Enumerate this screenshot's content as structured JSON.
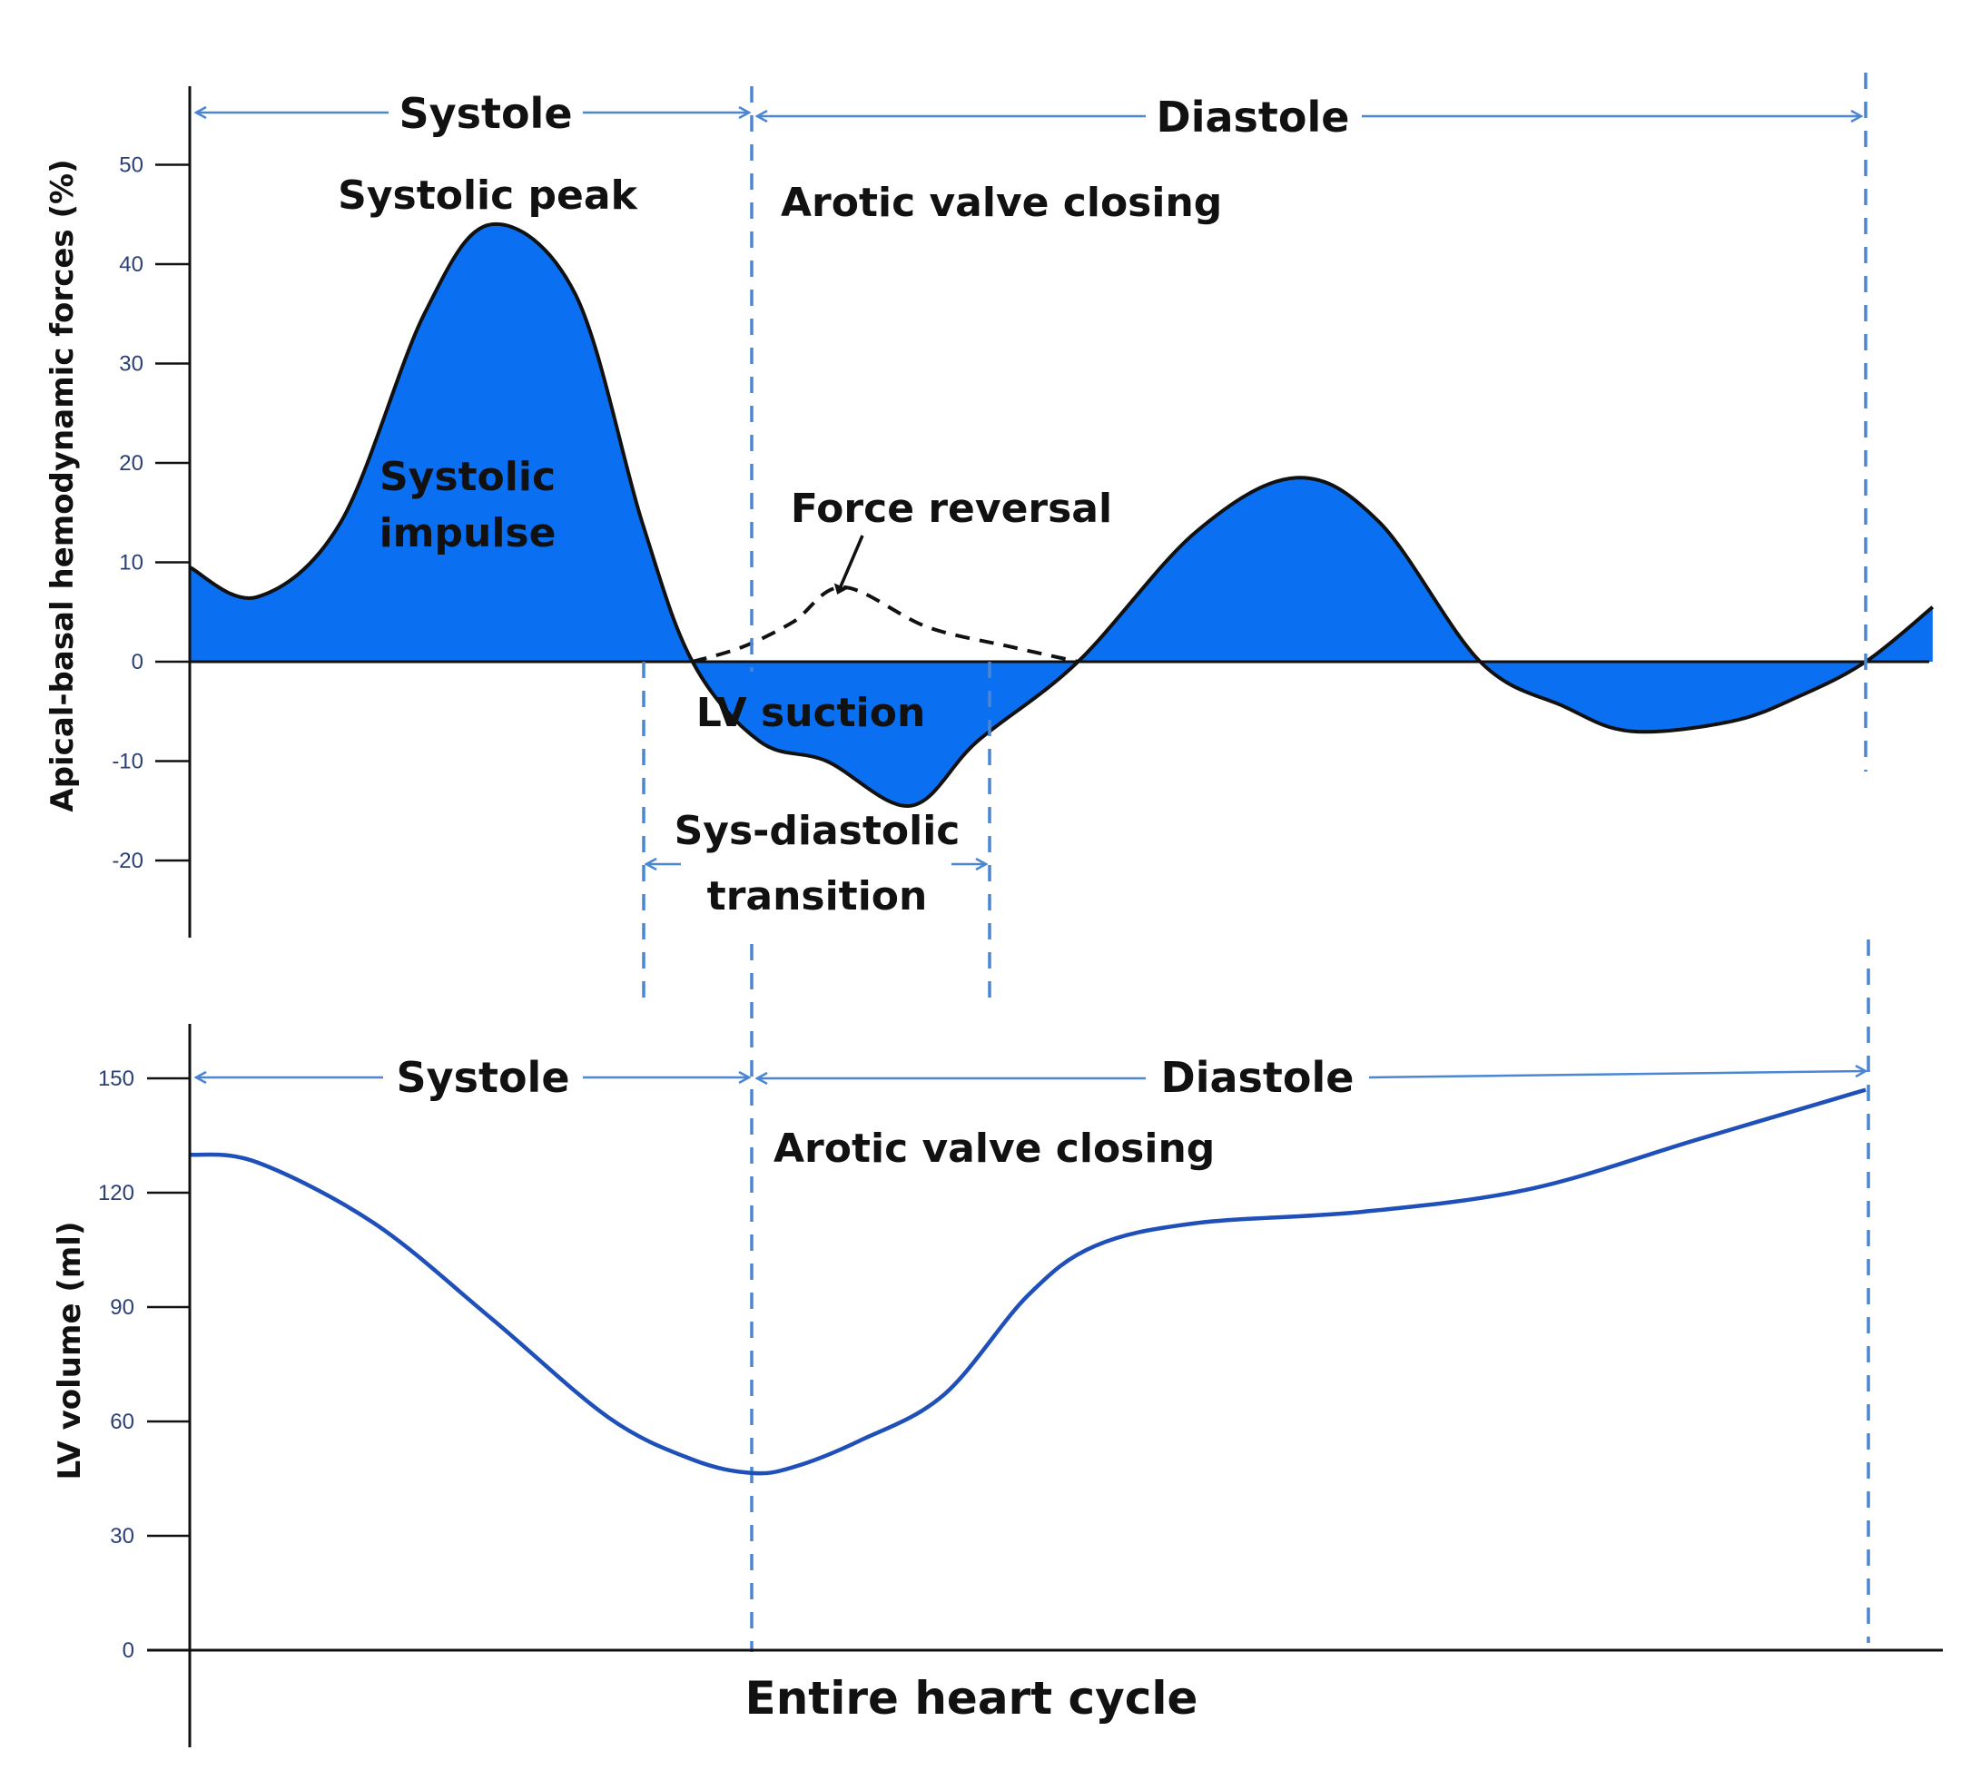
{
  "chart_data": [
    {
      "type": "area",
      "ylabel": "Apical-basal  hemodynamic forces  (%)",
      "ylim": [
        -27,
        57
      ],
      "yticks": [
        50,
        40,
        30,
        20,
        10,
        0,
        -10,
        -20
      ],
      "x_domain": [
        0,
        100
      ],
      "series": [
        {
          "x": [
            0,
            4,
            9,
            14,
            18,
            23,
            27,
            30,
            34,
            38,
            43,
            47,
            53,
            60,
            66,
            71,
            77,
            82,
            86,
            92,
            96,
            100,
            104
          ],
          "y": [
            9.5,
            6.5,
            14,
            35,
            44,
            37,
            14,
            0,
            -8,
            -10,
            -14.5,
            -8,
            0,
            13,
            18.5,
            14,
            0,
            -4.5,
            -7,
            -6,
            -3.5,
            0,
            5.5
          ]
        },
        {
          "style": "dashed",
          "x": [
            30,
            33,
            36,
            39,
            44,
            49,
            53
          ],
          "y": [
            0,
            1.5,
            4,
            7.5,
            3.5,
            1.5,
            0
          ]
        }
      ],
      "phases": {
        "systole": "Systole",
        "diastole": "Diastole"
      },
      "annotations": {
        "systolic_peak": "Systolic peak",
        "aortic_valve_closing": "Arotic valve closing",
        "systolic_impulse_1": "Systolic",
        "systolic_impulse_2": "impulse",
        "force_reversal": "Force reversal",
        "lv_suction": "LV suction",
        "sys_diastolic_1": "Sys-diastolic",
        "sys_diastolic_2": "transition"
      }
    },
    {
      "type": "line",
      "ylabel": "LV volume  (ml)",
      "xlabel": "Entire heart cycle",
      "ylim": [
        0,
        165
      ],
      "yticks": [
        150,
        120,
        90,
        60,
        30,
        0
      ],
      "x_domain": [
        0,
        100
      ],
      "series": [
        {
          "color": "#1f4fb8",
          "x": [
            0,
            4,
            11,
            18,
            25,
            30,
            33.5,
            36,
            40,
            45,
            50,
            54,
            60,
            70,
            80,
            90,
            100
          ],
          "y": [
            130,
            128,
            112,
            87,
            61,
            50,
            46.5,
            48,
            55,
            67,
            93,
            106,
            112,
            115,
            121,
            134,
            147
          ]
        }
      ],
      "phases": {
        "systole": "Systole",
        "diastole": "Diastole"
      },
      "annotations": {
        "aortic_valve_closing": "Arotic valve closing"
      }
    }
  ]
}
